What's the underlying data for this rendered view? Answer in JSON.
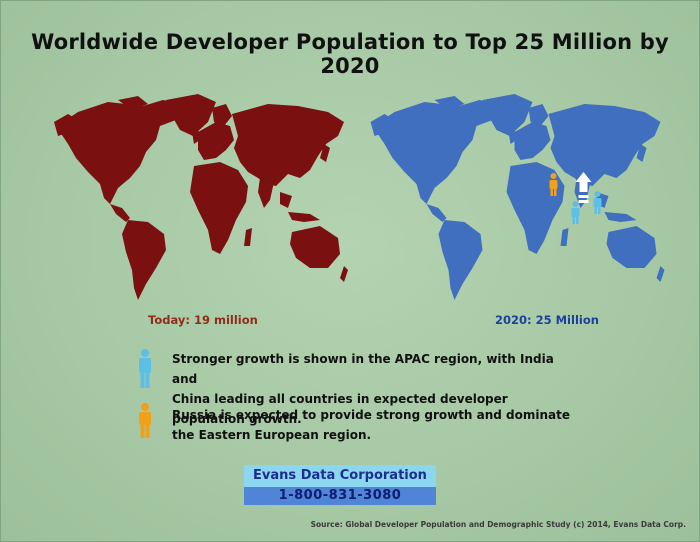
{
  "title": "Worldwide Developer Population to Top 25 Million by 2020",
  "maps": {
    "left_caption": "Today:  19 million",
    "right_caption": "2020:  25 Million",
    "left_color": "#7a1010",
    "right_color": "#3f6fbe"
  },
  "notes": [
    {
      "icon": "person-blue-icon",
      "color": "#5bbfe8",
      "text_line1": "Stronger growth is shown in the APAC region, with India and",
      "text_line2": "China leading all countries in expected developer population growth."
    },
    {
      "icon": "person-orange-icon",
      "color": "#f0a01a",
      "text_line1": "Russia is expected to provide strong growth and dominate",
      "text_line2": "the Eastern European region."
    }
  ],
  "company": {
    "name": "Evans Data Corporation",
    "phone": "1-800-831-3080"
  },
  "source": "Source:  Global Developer Population and Demographic Study (c) 2014, Evans Data Corp."
}
